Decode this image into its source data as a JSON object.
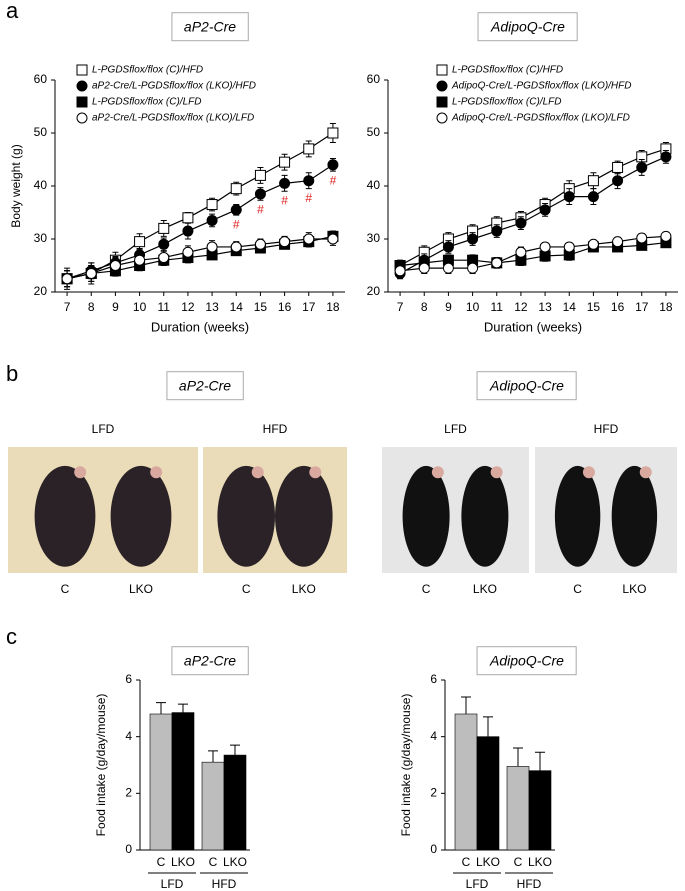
{
  "panel_labels": [
    "a",
    "b",
    "c"
  ],
  "chart_data": [
    {
      "type": "line",
      "title": "aP2-Cre",
      "ylabel": "Body weight (g)",
      "xlabel": "Duration (weeks)",
      "x": [
        7,
        8,
        9,
        10,
        11,
        12,
        13,
        14,
        15,
        16,
        17,
        18
      ],
      "xlim": [
        6.5,
        18.5
      ],
      "xticks": [
        7,
        8,
        9,
        10,
        11,
        12,
        13,
        14,
        15,
        16,
        17,
        18
      ],
      "ylim": [
        20,
        60
      ],
      "yticks": [
        20,
        30,
        40,
        50,
        60
      ],
      "series": [
        {
          "name": "L-PGDSflox/flox (C)/HFD",
          "marker": "square",
          "color": "#000000",
          "fill": "#ffffff",
          "values": [
            22.5,
            23.5,
            26,
            29.5,
            32,
            34,
            36.5,
            39.5,
            42,
            44.5,
            47,
            50
          ],
          "errors": [
            1.5,
            1.5,
            1.5,
            1.5,
            1.5,
            1,
            1.2,
            1.2,
            1.5,
            1.5,
            1.5,
            1.8
          ]
        },
        {
          "name": "aP2-Cre/L-PGDSflox/flox (LKO)/HFD",
          "marker": "circle",
          "color": "#000000",
          "fill": "#000000",
          "values": [
            22.5,
            24,
            25.5,
            27,
            29,
            31.5,
            33.5,
            35.5,
            38.5,
            40.5,
            41,
            44
          ],
          "errors": [
            1.5,
            1.5,
            1.2,
            1.2,
            1.2,
            1.5,
            1.2,
            1,
            1.2,
            1.5,
            1.5,
            1.2
          ]
        },
        {
          "name": "L-PGDSflox/flox (C)/LFD",
          "marker": "square",
          "color": "#000000",
          "fill": "#000000",
          "values": [
            22.5,
            23.5,
            24,
            25,
            26,
            26.5,
            27,
            27.8,
            28.3,
            29,
            29.5,
            30.5
          ],
          "errors": [
            1.5,
            1.5,
            1,
            1,
            1,
            1,
            0.8,
            0.8,
            0.8,
            0.8,
            1,
            1
          ]
        },
        {
          "name": "aP2-Cre/L-PGDSflox/flox (LKO)/LFD",
          "marker": "circle",
          "color": "#000000",
          "fill": "#ffffff",
          "values": [
            22.5,
            23.5,
            25,
            26,
            26.5,
            27.5,
            28.5,
            28.5,
            29,
            29.5,
            30,
            30
          ],
          "errors": [
            2,
            2,
            1.5,
            1.2,
            1.2,
            1.2,
            1.2,
            1,
            1,
            1,
            1.2,
            1.2
          ]
        }
      ],
      "annotations": [
        {
          "x": 14,
          "text": "#"
        },
        {
          "x": 15,
          "text": "#"
        },
        {
          "x": 16,
          "text": "#"
        },
        {
          "x": 17,
          "text": "#"
        },
        {
          "x": 18,
          "text": "#"
        }
      ]
    },
    {
      "type": "line",
      "title": "AdipoQ-Cre",
      "xlabel": "Duration (weeks)",
      "x": [
        7,
        8,
        9,
        10,
        11,
        12,
        13,
        14,
        15,
        16,
        17,
        18
      ],
      "xlim": [
        6.5,
        18.5
      ],
      "xticks": [
        7,
        8,
        9,
        10,
        11,
        12,
        13,
        14,
        15,
        16,
        17,
        18
      ],
      "ylim": [
        20,
        60
      ],
      "yticks": [
        20,
        30,
        40,
        50,
        60
      ],
      "series": [
        {
          "name": "L-PGDSflox/flox (C)/HFD",
          "marker": "square",
          "color": "#000000",
          "fill": "#ffffff",
          "values": [
            25,
            27.5,
            30,
            31.5,
            33,
            34,
            36.5,
            39.5,
            41,
            43.5,
            45.5,
            47
          ],
          "errors": [
            1,
            1.2,
            1.2,
            1.2,
            1.2,
            1.2,
            1.2,
            1.5,
            1.5,
            1.2,
            1.2,
            1.2
          ]
        },
        {
          "name": "AdipoQ-Cre/L-PGDSflox/flox (LKO)/HFD",
          "marker": "circle",
          "color": "#000000",
          "fill": "#000000",
          "values": [
            23.5,
            26,
            28.5,
            30,
            31.5,
            33,
            35.5,
            38,
            38,
            41,
            43.5,
            45.5
          ],
          "errors": [
            1,
            1.2,
            1.2,
            1.2,
            1.2,
            1.2,
            1.2,
            1.5,
            1.5,
            1.5,
            1.5,
            1.2
          ]
        },
        {
          "name": "L-PGDSflox/flox (C)/LFD",
          "marker": "square",
          "color": "#000000",
          "fill": "#000000",
          "values": [
            25,
            25.5,
            26,
            26,
            25.5,
            26,
            26.8,
            27,
            28.5,
            28.5,
            28.8,
            29.3
          ],
          "errors": [
            1,
            1,
            1,
            1,
            1,
            1,
            1,
            1,
            0.8,
            0.8,
            0.8,
            0.8
          ]
        },
        {
          "name": "AdipoQ-Cre/L-PGDSflox/flox (LKO)/LFD",
          "marker": "circle",
          "color": "#000000",
          "fill": "#ffffff",
          "values": [
            24,
            24.5,
            24.5,
            24.5,
            25.5,
            27.5,
            28.5,
            28.5,
            29,
            29.5,
            30.2,
            30.5
          ],
          "errors": [
            1,
            1,
            1,
            1,
            1,
            1,
            0.8,
            0.8,
            0.8,
            0.8,
            0.8,
            0.8
          ]
        }
      ]
    },
    {
      "type": "bar",
      "title": "aP2-Cre",
      "ylabel": "Food intake (g/day/mouse)",
      "categories": [
        "C",
        "LKO",
        "C",
        "LKO"
      ],
      "groups": [
        "LFD",
        "HFD"
      ],
      "values": [
        4.8,
        4.85,
        3.1,
        3.35
      ],
      "errors": [
        0.4,
        0.3,
        0.4,
        0.35
      ],
      "colors": [
        "#bdbdbd",
        "#000000",
        "#bdbdbd",
        "#000000"
      ],
      "ylim": [
        0,
        6
      ],
      "yticks": [
        0,
        2,
        4,
        6
      ]
    },
    {
      "type": "bar",
      "title": "AdipoQ-Cre",
      "ylabel": "Food intake (g/day/mouse)",
      "categories": [
        "C",
        "LKO",
        "C",
        "LKO"
      ],
      "groups": [
        "LFD",
        "HFD"
      ],
      "values": [
        4.8,
        4.0,
        2.95,
        2.8
      ],
      "errors": [
        0.6,
        0.7,
        0.65,
        0.65
      ],
      "colors": [
        "#bdbdbd",
        "#000000",
        "#bdbdbd",
        "#000000"
      ],
      "ylim": [
        0,
        6
      ],
      "yticks": [
        0,
        2,
        4,
        6
      ]
    }
  ],
  "photos": [
    {
      "title": "aP2-Cre",
      "panels": [
        {
          "label": "LFD",
          "mice": [
            "C",
            "LKO"
          ]
        },
        {
          "label": "HFD",
          "mice": [
            "C",
            "LKO"
          ]
        }
      ]
    },
    {
      "title": "AdipoQ-Cre",
      "panels": [
        {
          "label": "LFD",
          "mice": [
            "C",
            "LKO"
          ]
        },
        {
          "label": "HFD",
          "mice": [
            "C",
            "LKO"
          ]
        }
      ]
    }
  ]
}
